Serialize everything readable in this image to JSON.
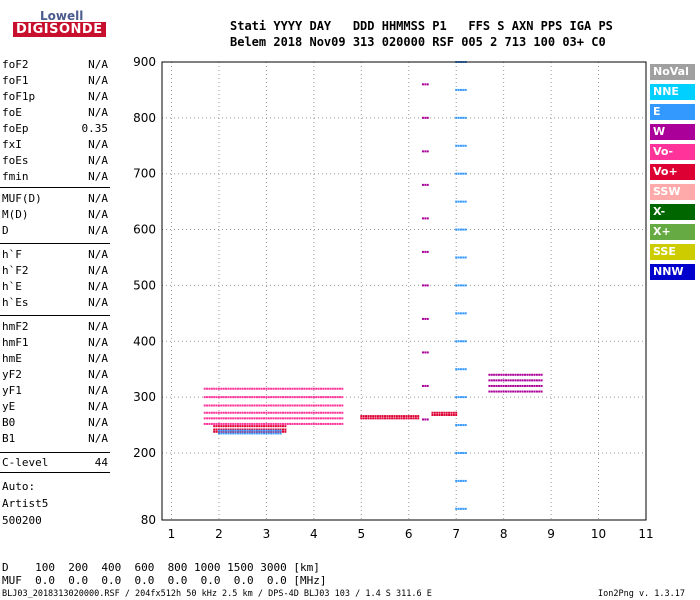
{
  "logo": {
    "line1": "Lowell",
    "line2": "DIGISONDE"
  },
  "header": {
    "line1": "Stati YYYY DAY   DDD HHMMSS P1   FFS S AXN PPS IGA PS",
    "line2": "Belem 2018 Nov09 313 020000 RSF 005 2 713 100 03+ C0"
  },
  "params_a": [
    {
      "name": "foF2",
      "value": "N/A"
    },
    {
      "name": "foF1",
      "value": "N/A"
    },
    {
      "name": "foF1p",
      "value": "N/A"
    },
    {
      "name": "foE",
      "value": "N/A"
    },
    {
      "name": "foEp",
      "value": "0.35"
    },
    {
      "name": "fxI",
      "value": "N/A"
    },
    {
      "name": "foEs",
      "value": "N/A"
    },
    {
      "name": "fmin",
      "value": "N/A"
    }
  ],
  "params_b": [
    {
      "name": "MUF(D)",
      "value": "N/A"
    },
    {
      "name": "M(D)",
      "value": "N/A"
    },
    {
      "name": "D",
      "value": "N/A"
    }
  ],
  "params_c": [
    {
      "name": "h`F",
      "value": "N/A"
    },
    {
      "name": "h`F2",
      "value": "N/A"
    },
    {
      "name": "h`E",
      "value": "N/A"
    },
    {
      "name": "h`Es",
      "value": "N/A"
    }
  ],
  "params_d": [
    {
      "name": "hmF2",
      "value": "N/A"
    },
    {
      "name": "hmF1",
      "value": "N/A"
    },
    {
      "name": "hmE",
      "value": "N/A"
    },
    {
      "name": "yF2",
      "value": "N/A"
    },
    {
      "name": "yF1",
      "value": "N/A"
    },
    {
      "name": "yE",
      "value": "N/A"
    },
    {
      "name": "B0",
      "value": "N/A"
    },
    {
      "name": "B1",
      "value": "N/A"
    }
  ],
  "params_e": [
    {
      "name": "C-level",
      "value": "44"
    }
  ],
  "auto": {
    "l1": "Auto:",
    "l2": "Artist5",
    "l3": "500200"
  },
  "footer": {
    "d_line": "D    100  200  400  600  800 1000 1500 3000 [km]",
    "muf_line": "MUF  0.0  0.0  0.0  0.0  0.0  0.0  0.0  0.0 [MHz]",
    "file_line": "BLJ03_2018313020000.RSF / 204fx512h 50 kHz 2.5 km / DPS-4D BLJ03 103 / 1.4 S 311.6 E",
    "version": "Ion2Png v. 1.3.17"
  },
  "legend": [
    {
      "label": "NoVal",
      "color": "#a0a0a0"
    },
    {
      "label": "NNE",
      "color": "#00d0ff"
    },
    {
      "label": "E",
      "color": "#3399ff"
    },
    {
      "label": "W",
      "color": "#aa0099"
    },
    {
      "label": "Vo-",
      "color": "#ff3399"
    },
    {
      "label": "Vo+",
      "color": "#dd0033"
    },
    {
      "label": "SSW",
      "color": "#ffaaaa"
    },
    {
      "label": "X-",
      "color": "#006600"
    },
    {
      "label": "X+",
      "color": "#66aa44"
    },
    {
      "label": "SSE",
      "color": "#cccc00"
    },
    {
      "label": "NNW",
      "color": "#0000cc"
    }
  ],
  "chart_data": {
    "type": "scatter",
    "title": "",
    "xlabel": "",
    "ylabel": "",
    "xlim": [
      0.8,
      11
    ],
    "ylim": [
      80,
      900
    ],
    "x_ticks": [
      "1",
      "2",
      "3",
      "4",
      "5",
      "6",
      "7",
      "8",
      "9",
      "10",
      "11"
    ],
    "y_ticks": [
      "80",
      "200",
      "300",
      "400",
      "500",
      "600",
      "700",
      "800",
      "900"
    ],
    "y_tick_values": [
      80,
      200,
      300,
      400,
      500,
      600,
      700,
      800,
      900
    ],
    "grid": true,
    "traces": [
      {
        "name": "Vo+",
        "color": "#dd0033",
        "x_start": 1.9,
        "x_end": 3.4,
        "heights": [
          238,
          242,
          248
        ]
      },
      {
        "name": "Vo+",
        "color": "#dd0033",
        "x_start": 5.0,
        "x_end": 6.2,
        "heights": [
          262,
          266
        ]
      },
      {
        "name": "Vo+",
        "color": "#dd0033",
        "x_start": 6.5,
        "x_end": 7.0,
        "heights": [
          268,
          272
        ]
      },
      {
        "name": "Vo-",
        "color": "#ff3399",
        "x_start": 1.7,
        "x_end": 4.6,
        "heights": [
          252,
          262,
          272,
          285,
          300,
          315
        ]
      },
      {
        "name": "E",
        "color": "#3399ff",
        "x_start": 2.0,
        "x_end": 3.3,
        "heights": [
          235,
          240
        ]
      },
      {
        "name": "E",
        "color": "#3399ff",
        "x_start": 7.0,
        "x_end": 7.2,
        "heights": [
          100,
          150,
          200,
          250,
          300,
          350,
          400,
          450,
          500,
          550,
          600,
          650,
          700,
          750,
          800,
          850,
          900
        ]
      },
      {
        "name": "W",
        "color": "#aa0099",
        "x_start": 6.3,
        "x_end": 6.4,
        "heights": [
          260,
          320,
          380,
          440,
          500,
          560,
          620,
          680,
          740,
          800,
          860
        ]
      },
      {
        "name": "W",
        "color": "#aa0099",
        "x_start": 7.7,
        "x_end": 8.8,
        "heights": [
          310,
          320,
          330,
          340
        ]
      }
    ]
  }
}
